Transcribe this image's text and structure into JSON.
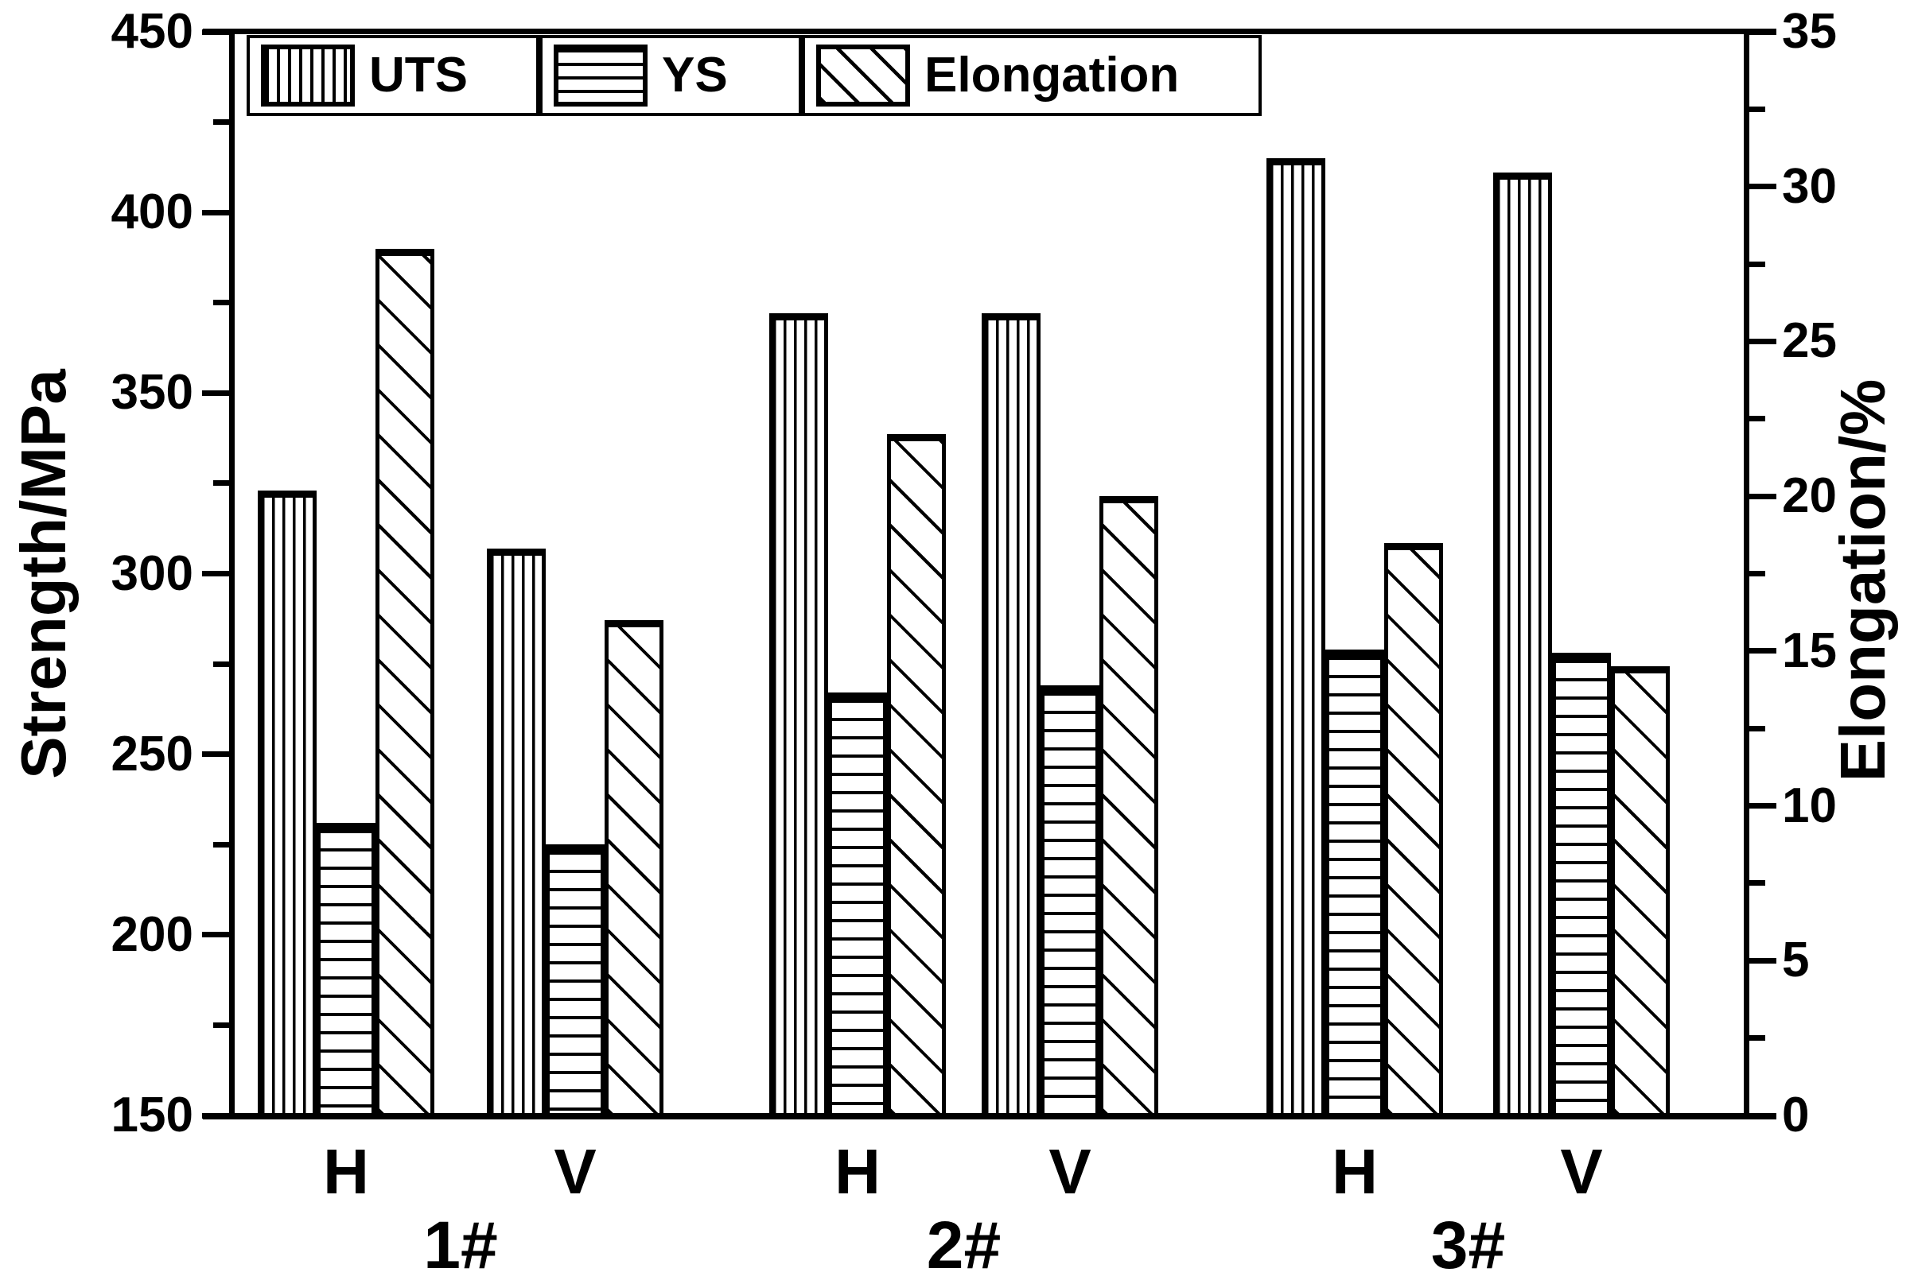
{
  "chart_data": {
    "type": "bar",
    "title": "",
    "background": "#ffffff",
    "foreground": "#000000",
    "grid": false,
    "legend": {
      "position": "top-left",
      "entries": [
        {
          "label": "UTS",
          "pattern": "vertical-hatch"
        },
        {
          "label": "YS",
          "pattern": "horizontal-hatch"
        },
        {
          "label": "Elongation",
          "pattern": "diagonal-hatch"
        }
      ]
    },
    "categories": [
      "H",
      "V",
      "H",
      "V",
      "H",
      "V"
    ],
    "group_labels": [
      "1#",
      "2#",
      "3#"
    ],
    "series": [
      {
        "name": "UTS",
        "axis": "left",
        "unit": "MPa",
        "pattern": "vertical-hatch",
        "values": [
          323,
          307,
          372,
          372,
          415,
          411
        ]
      },
      {
        "name": "YS",
        "axis": "left",
        "unit": "MPa",
        "pattern": "horizontal-hatch",
        "values": [
          231,
          225,
          267,
          269,
          279,
          278
        ]
      },
      {
        "name": "Elongation",
        "axis": "right",
        "unit": "%",
        "pattern": "diagonal-hatch",
        "values": [
          28,
          16,
          22,
          20,
          18.5,
          14.5
        ]
      }
    ],
    "left_axis": {
      "title": "Strength/MPa",
      "min": 150,
      "max": 450,
      "major_step": 50,
      "minor_step": 25,
      "tick_labels": [
        "150",
        "200",
        "250",
        "300",
        "350",
        "400",
        "450"
      ]
    },
    "right_axis": {
      "title": "Elongation/%",
      "min": 0,
      "max": 35,
      "major_step": 5,
      "minor_step": 2.5,
      "tick_labels": [
        "0",
        "5",
        "10",
        "15",
        "20",
        "25",
        "30",
        "35"
      ]
    }
  }
}
